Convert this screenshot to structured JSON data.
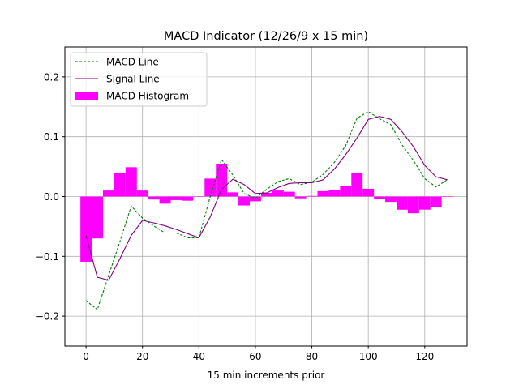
{
  "chart_data": {
    "type": "line",
    "title": "MACD Indicator (12/26/9 x 15 min)",
    "xlabel": "15 min increments prior",
    "ylabel": "",
    "xlim": [
      -7.5,
      135
    ],
    "ylim": [
      -0.25,
      0.25
    ],
    "grid": true,
    "legend_placement": "top-left",
    "xticks": [
      0,
      20,
      40,
      60,
      80,
      100,
      120
    ],
    "xtick_labels": [
      "0",
      "20",
      "40",
      "60",
      "80",
      "100",
      "120"
    ],
    "yticks": [
      0.2,
      0.1,
      0.0,
      -0.1,
      -0.2
    ],
    "ytick_labels": [
      "0.2",
      "0.1",
      "0.0",
      "−0.1",
      "−0.2"
    ],
    "x": [
      0,
      4,
      8,
      12,
      16,
      20,
      24,
      28,
      32,
      36,
      40,
      44,
      48,
      52,
      56,
      60,
      64,
      68,
      72,
      76,
      80,
      84,
      88,
      92,
      96,
      100,
      104,
      108,
      112,
      116,
      120,
      124,
      128
    ],
    "series": [
      {
        "name": "MACD Line",
        "kind": "line",
        "style": "dashed",
        "color": "#008000",
        "values": [
          -0.174,
          -0.189,
          -0.132,
          -0.075,
          -0.016,
          -0.036,
          -0.049,
          -0.061,
          -0.061,
          -0.069,
          -0.069,
          0.0,
          0.062,
          0.036,
          0.005,
          -0.003,
          0.012,
          0.025,
          0.03,
          0.02,
          0.024,
          0.037,
          0.057,
          0.085,
          0.131,
          0.142,
          0.13,
          0.12,
          0.086,
          0.06,
          0.03,
          0.016,
          0.028
        ]
      },
      {
        "name": "Signal Line",
        "kind": "line",
        "style": "solid",
        "color": "#800080",
        "values": [
          -0.065,
          -0.135,
          -0.14,
          -0.104,
          -0.065,
          -0.04,
          -0.044,
          -0.049,
          -0.055,
          -0.062,
          -0.069,
          -0.034,
          0.012,
          0.029,
          0.02,
          0.005,
          0.006,
          0.015,
          0.022,
          0.023,
          0.023,
          0.028,
          0.046,
          0.07,
          0.098,
          0.129,
          0.134,
          0.129,
          0.108,
          0.083,
          0.052,
          0.033,
          0.028
        ]
      },
      {
        "name": "MACD Histogram",
        "kind": "bar",
        "color": "#ff00ff",
        "values": [
          -0.109,
          -0.07,
          0.01,
          0.04,
          0.049,
          0.01,
          -0.005,
          -0.012,
          -0.006,
          -0.007,
          0.0,
          0.03,
          0.055,
          0.007,
          -0.015,
          -0.008,
          0.006,
          0.01,
          0.008,
          -0.003,
          0.001,
          0.009,
          0.011,
          0.018,
          0.04,
          0.013,
          -0.004,
          -0.009,
          -0.022,
          -0.028,
          -0.022,
          -0.017,
          0.0
        ]
      }
    ]
  }
}
